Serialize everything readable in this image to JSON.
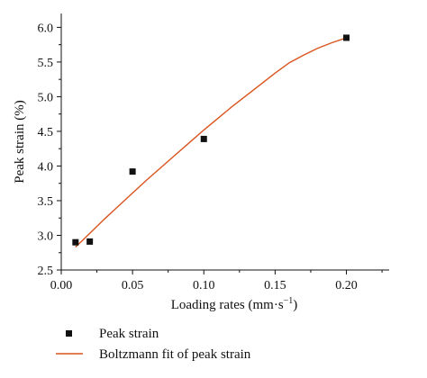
{
  "chart_data": {
    "type": "scatter",
    "xlabel": "Loading rates (mm·s",
    "xlabel_superscript": "−1",
    "xlabel_suffix": ")",
    "ylabel": "Peak strain (%)",
    "xlim": [
      0.0,
      0.23
    ],
    "ylim": [
      2.5,
      6.2
    ],
    "x_ticks": [
      0.0,
      0.05,
      0.1,
      0.15,
      0.2
    ],
    "x_tick_labels": [
      "0.00",
      "0.05",
      "0.10",
      "0.15",
      "0.20"
    ],
    "y_ticks": [
      2.5,
      3.0,
      3.5,
      4.0,
      4.5,
      5.0,
      5.5,
      6.0
    ],
    "y_tick_labels": [
      "2.5",
      "3.0",
      "3.5",
      "4.0",
      "4.5",
      "5.0",
      "5.5",
      "6.0"
    ],
    "grid": false,
    "legend_position": "bottom-left below plot",
    "series": [
      {
        "name": "Peak strain",
        "type": "scatter",
        "color": "#111111",
        "x": [
          0.01,
          0.02,
          0.05,
          0.1,
          0.2
        ],
        "y": [
          2.9,
          2.91,
          3.92,
          4.39,
          5.85
        ]
      },
      {
        "name": "Boltzmann fit of peak strain",
        "type": "line",
        "color": "#d9541e",
        "x": [
          0.01,
          0.02,
          0.03,
          0.04,
          0.05,
          0.06,
          0.07,
          0.08,
          0.09,
          0.1,
          0.11,
          0.12,
          0.13,
          0.14,
          0.15,
          0.16,
          0.17,
          0.18,
          0.19,
          0.2
        ],
        "y": [
          2.83,
          3.03,
          3.23,
          3.42,
          3.61,
          3.8,
          3.98,
          4.16,
          4.34,
          4.52,
          4.69,
          4.86,
          5.02,
          5.18,
          5.34,
          5.49,
          5.6,
          5.7,
          5.78,
          5.85
        ]
      }
    ]
  }
}
